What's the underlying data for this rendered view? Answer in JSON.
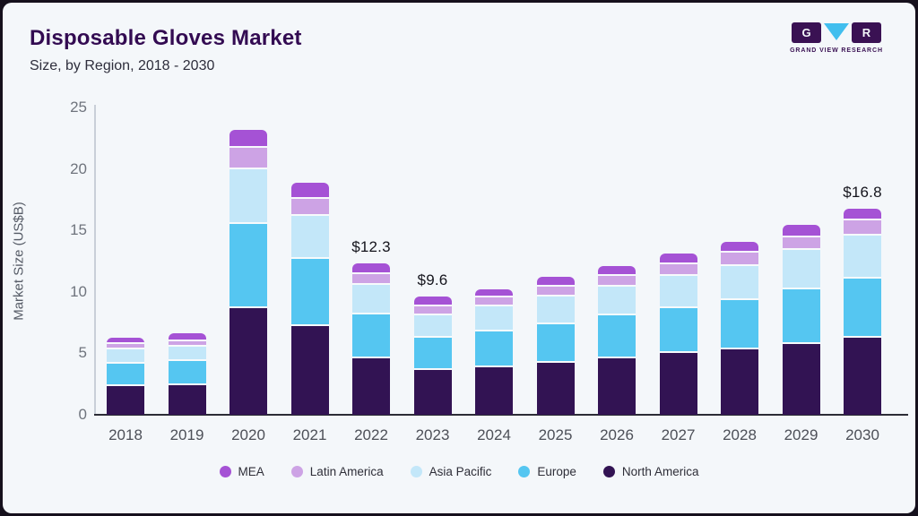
{
  "header": {
    "title": "Disposable Gloves Market",
    "subtitle": "Size, by Region, 2018 - 2030"
  },
  "logo": {
    "letter_left": "G",
    "letter_right": "R",
    "triangle_icon_color": "#41BEEE",
    "box_color": "#3A1153",
    "caption": "GRAND VIEW RESEARCH"
  },
  "chart_data": {
    "type": "bar",
    "stacked": true,
    "title": "Disposable Gloves Market Size, by Region, 2018 - 2030",
    "ylabel": "Market Size (US$B)",
    "ylim": [
      0,
      25
    ],
    "yticks": [
      0,
      5,
      10,
      15,
      20,
      25
    ],
    "grid": false,
    "legend_position": "bottom",
    "categories": [
      "2018",
      "2019",
      "2020",
      "2021",
      "2022",
      "2023",
      "2024",
      "2025",
      "2026",
      "2027",
      "2028",
      "2029",
      "2030"
    ],
    "series": [
      {
        "name": "North America",
        "color": "#321353",
        "values": [
          2.3,
          2.4,
          8.7,
          7.2,
          4.6,
          3.65,
          3.9,
          4.2,
          4.6,
          5.0,
          5.3,
          5.75,
          6.3
        ]
      },
      {
        "name": "Europe",
        "color": "#55C6F1",
        "values": [
          1.85,
          1.95,
          6.8,
          5.45,
          3.6,
          2.65,
          2.9,
          3.2,
          3.5,
          3.7,
          4.05,
          4.45,
          4.8
        ]
      },
      {
        "name": "Asia Pacific",
        "color": "#C3E7F9",
        "values": [
          1.15,
          1.2,
          4.45,
          3.55,
          2.35,
          1.8,
          2.0,
          2.2,
          2.3,
          2.6,
          2.75,
          3.25,
          3.45
        ]
      },
      {
        "name": "Latin America",
        "color": "#CDA3E5",
        "values": [
          0.45,
          0.4,
          1.8,
          1.4,
          0.9,
          0.75,
          0.75,
          0.8,
          0.9,
          0.95,
          1.1,
          1.0,
          1.25
        ]
      },
      {
        "name": "MEA",
        "color": "#A552D5",
        "values": [
          0.5,
          0.65,
          1.45,
          1.25,
          0.85,
          0.75,
          0.65,
          0.8,
          0.8,
          0.9,
          0.9,
          1.0,
          1.0
        ]
      }
    ],
    "totals": [
      6.25,
      6.6,
      23.2,
      18.85,
      12.3,
      9.6,
      10.2,
      11.2,
      12.1,
      13.15,
      14.1,
      15.45,
      16.8
    ],
    "bar_labels": [
      {
        "category": "2022",
        "index": 4,
        "text": "$12.3"
      },
      {
        "category": "2023",
        "index": 5,
        "text": "$9.6"
      },
      {
        "category": "2030",
        "index": 12,
        "text": "$16.8"
      }
    ],
    "legend": [
      {
        "label": "MEA",
        "color": "#A552D5"
      },
      {
        "label": "Latin America",
        "color": "#CDA3E5"
      },
      {
        "label": "Asia Pacific",
        "color": "#C3E7F9"
      },
      {
        "label": "Europe",
        "color": "#55C6F1"
      },
      {
        "label": "North America",
        "color": "#321353"
      }
    ]
  }
}
